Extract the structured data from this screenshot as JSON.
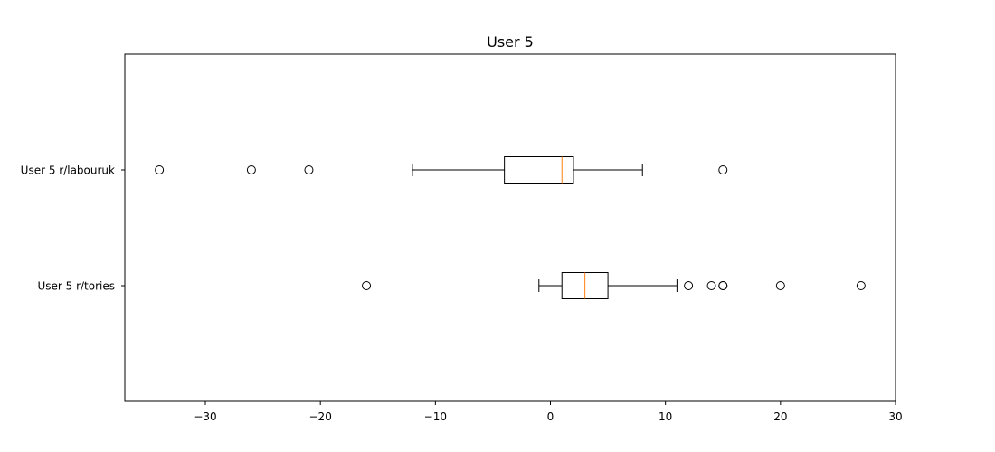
{
  "chart_data": {
    "type": "boxplot",
    "orientation": "horizontal",
    "title": "User 5",
    "xlabel": "",
    "ylabel": "",
    "xlim": [
      -37,
      30
    ],
    "x_ticks": [
      -30,
      -20,
      -10,
      0,
      10,
      20,
      30
    ],
    "x_tick_labels": [
      "−30",
      "−20",
      "−10",
      "0",
      "10",
      "20",
      "30"
    ],
    "grid": false,
    "box_color": "#000000",
    "median_color": "#ff7f0e",
    "series": [
      {
        "label": "User 5 r/labouruk",
        "whisker_low": -12,
        "q1": -4,
        "median": 1,
        "q3": 2,
        "whisker_high": 8,
        "outliers": [
          -34,
          -26,
          -21,
          15
        ]
      },
      {
        "label": "User 5 r/tories",
        "whisker_low": -1,
        "q1": 1,
        "median": 3,
        "q3": 5,
        "whisker_high": 11,
        "outliers": [
          -16,
          12,
          14,
          15,
          15,
          20,
          27
        ]
      }
    ]
  }
}
